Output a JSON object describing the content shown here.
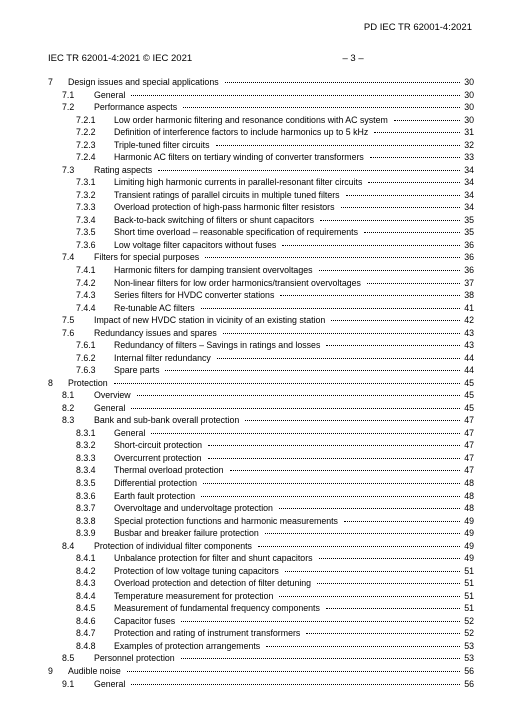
{
  "doc_id_top": "PD IEC TR 62001-4:2021",
  "header_left": "IEC TR 62001-4:2021 © IEC 2021",
  "header_center": "– 3 –",
  "toc": [
    {
      "lvl": 1,
      "num": "7",
      "label": "Design issues and special applications",
      "pg": "30"
    },
    {
      "lvl": 2,
      "num": "7.1",
      "label": "General",
      "pg": "30"
    },
    {
      "lvl": 2,
      "num": "7.2",
      "label": "Performance aspects",
      "pg": "30"
    },
    {
      "lvl": 3,
      "num": "7.2.1",
      "label": "Low order harmonic filtering and resonance conditions with AC system",
      "pg": "30"
    },
    {
      "lvl": 3,
      "num": "7.2.2",
      "label": "Definition of interference factors to include harmonics up to 5 kHz",
      "pg": "31"
    },
    {
      "lvl": 3,
      "num": "7.2.3",
      "label": "Triple-tuned filter circuits",
      "pg": "32"
    },
    {
      "lvl": 3,
      "num": "7.2.4",
      "label": "Harmonic AC filters on tertiary winding of converter transformers",
      "pg": "33"
    },
    {
      "lvl": 2,
      "num": "7.3",
      "label": "Rating aspects",
      "pg": "34"
    },
    {
      "lvl": 3,
      "num": "7.3.1",
      "label": "Limiting high harmonic currents in parallel-resonant filter circuits",
      "pg": "34"
    },
    {
      "lvl": 3,
      "num": "7.3.2",
      "label": "Transient ratings of parallel circuits in multiple tuned filters",
      "pg": "34"
    },
    {
      "lvl": 3,
      "num": "7.3.3",
      "label": "Overload protection of high-pass harmonic filter resistors",
      "pg": "34"
    },
    {
      "lvl": 3,
      "num": "7.3.4",
      "label": "Back-to-back switching of filters or shunt capacitors",
      "pg": "35"
    },
    {
      "lvl": 3,
      "num": "7.3.5",
      "label": "Short time overload – reasonable specification of requirements",
      "pg": "35"
    },
    {
      "lvl": 3,
      "num": "7.3.6",
      "label": "Low voltage filter capacitors without fuses",
      "pg": "36"
    },
    {
      "lvl": 2,
      "num": "7.4",
      "label": "Filters for special purposes",
      "pg": "36"
    },
    {
      "lvl": 3,
      "num": "7.4.1",
      "label": "Harmonic filters for damping transient overvoltages",
      "pg": "36"
    },
    {
      "lvl": 3,
      "num": "7.4.2",
      "label": "Non-linear filters for low order harmonics/transient overvoltages",
      "pg": "37"
    },
    {
      "lvl": 3,
      "num": "7.4.3",
      "label": "Series filters for HVDC converter stations",
      "pg": "38"
    },
    {
      "lvl": 3,
      "num": "7.4.4",
      "label": "Re-tunable AC filters",
      "pg": "41"
    },
    {
      "lvl": 2,
      "num": "7.5",
      "label": "Impact of new HVDC station in vicinity of an existing station",
      "pg": "42"
    },
    {
      "lvl": 2,
      "num": "7.6",
      "label": "Redundancy issues and spares",
      "pg": "43"
    },
    {
      "lvl": 3,
      "num": "7.6.1",
      "label": "Redundancy of filters – Savings in ratings and losses",
      "pg": "43"
    },
    {
      "lvl": 3,
      "num": "7.6.2",
      "label": "Internal filter redundancy",
      "pg": "44"
    },
    {
      "lvl": 3,
      "num": "7.6.3",
      "label": "Spare parts",
      "pg": "44"
    },
    {
      "lvl": 1,
      "num": "8",
      "label": "Protection",
      "pg": "45"
    },
    {
      "lvl": 2,
      "num": "8.1",
      "label": "Overview",
      "pg": "45"
    },
    {
      "lvl": 2,
      "num": "8.2",
      "label": "General",
      "pg": "45"
    },
    {
      "lvl": 2,
      "num": "8.3",
      "label": "Bank and sub-bank overall protection",
      "pg": "47"
    },
    {
      "lvl": 3,
      "num": "8.3.1",
      "label": "General",
      "pg": "47"
    },
    {
      "lvl": 3,
      "num": "8.3.2",
      "label": "Short-circuit protection",
      "pg": "47"
    },
    {
      "lvl": 3,
      "num": "8.3.3",
      "label": "Overcurrent protection",
      "pg": "47"
    },
    {
      "lvl": 3,
      "num": "8.3.4",
      "label": "Thermal overload protection",
      "pg": "47"
    },
    {
      "lvl": 3,
      "num": "8.3.5",
      "label": "Differential protection",
      "pg": "48"
    },
    {
      "lvl": 3,
      "num": "8.3.6",
      "label": "Earth fault protection",
      "pg": "48"
    },
    {
      "lvl": 3,
      "num": "8.3.7",
      "label": "Overvoltage and undervoltage protection",
      "pg": "48"
    },
    {
      "lvl": 3,
      "num": "8.3.8",
      "label": "Special protection functions and harmonic measurements",
      "pg": "49"
    },
    {
      "lvl": 3,
      "num": "8.3.9",
      "label": "Busbar and breaker failure protection",
      "pg": "49"
    },
    {
      "lvl": 2,
      "num": "8.4",
      "label": "Protection of individual filter components",
      "pg": "49"
    },
    {
      "lvl": 3,
      "num": "8.4.1",
      "label": "Unbalance protection for filter and shunt capacitors",
      "pg": "49"
    },
    {
      "lvl": 3,
      "num": "8.4.2",
      "label": "Protection of low voltage tuning capacitors",
      "pg": "51"
    },
    {
      "lvl": 3,
      "num": "8.4.3",
      "label": "Overload protection and detection of filter detuning",
      "pg": "51"
    },
    {
      "lvl": 3,
      "num": "8.4.4",
      "label": "Temperature measurement for protection",
      "pg": "51"
    },
    {
      "lvl": 3,
      "num": "8.4.5",
      "label": "Measurement of fundamental frequency components",
      "pg": "51"
    },
    {
      "lvl": 3,
      "num": "8.4.6",
      "label": "Capacitor fuses",
      "pg": "52"
    },
    {
      "lvl": 3,
      "num": "8.4.7",
      "label": "Protection and rating of instrument transformers",
      "pg": "52"
    },
    {
      "lvl": 3,
      "num": "8.4.8",
      "label": "Examples of protection arrangements",
      "pg": "53"
    },
    {
      "lvl": 2,
      "num": "8.5",
      "label": "Personnel protection",
      "pg": "53"
    },
    {
      "lvl": 1,
      "num": "9",
      "label": "Audible noise",
      "pg": "56"
    },
    {
      "lvl": 2,
      "num": "9.1",
      "label": "General",
      "pg": "56"
    }
  ]
}
